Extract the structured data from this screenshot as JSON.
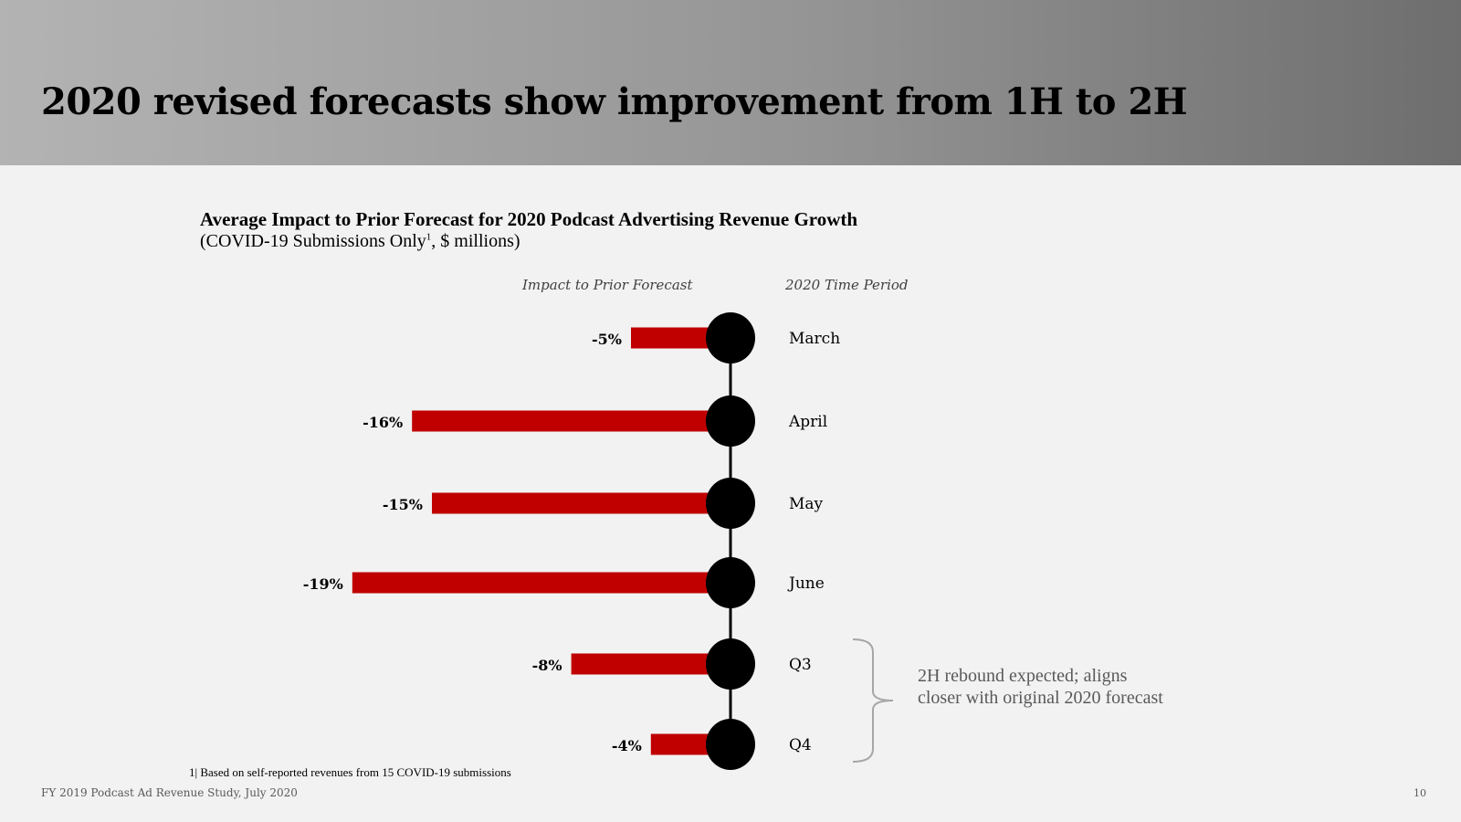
{
  "slide": {
    "title": "2020 revised forecasts show improvement from 1H to 2H",
    "source": "FY 2019 Podcast Ad Revenue Study, July 2020",
    "page_number": "10",
    "footnote": "1| Based on self-reported revenues from 15 COVID-19 submissions"
  },
  "chart_data": {
    "type": "bar",
    "orientation": "horizontal",
    "title": "Average Impact to Prior Forecast for 2020 Podcast Advertising Revenue Growth",
    "subtitle_main": "(COVID-19 Submissions Only",
    "subtitle_sup": "1",
    "subtitle_end": ", $ millions)",
    "value_column_label": "Impact to Prior Forecast",
    "period_column_label": "2020 Time Period",
    "categories": [
      "March",
      "April",
      "May",
      "June",
      "Q3",
      "Q4"
    ],
    "values": [
      -5,
      -16,
      -15,
      -19,
      -8,
      -4
    ],
    "value_labels": [
      "-5%",
      "-16%",
      "-15%",
      "-19%",
      "-8%",
      "-4%"
    ],
    "bracket_note": "2H rebound expected; aligns closer with original 2020 forecast",
    "colors": {
      "bar": "#c00000",
      "marker": "#000000",
      "bracket": "#a6a6a6"
    }
  }
}
